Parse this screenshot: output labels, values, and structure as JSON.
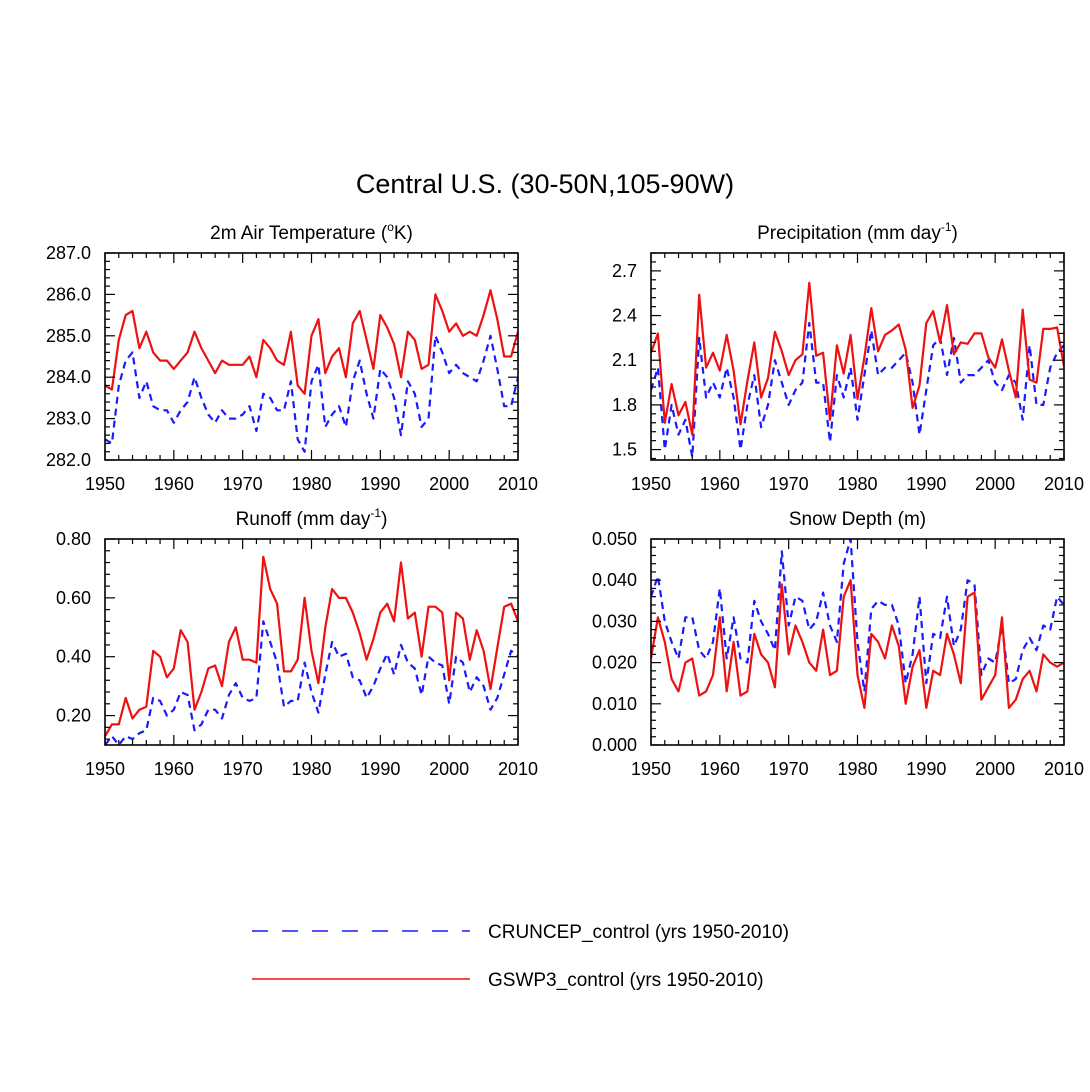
{
  "figure": {
    "title": "Central U.S. (30-50N,105-90W)"
  },
  "legend": {
    "items": [
      {
        "label": "CRUNCEP_control (yrs 1950-2010)",
        "color": "#1a1aff",
        "style": "dashed"
      },
      {
        "label": "GSWP3_control (yrs 1950-2010)",
        "color": "#ee1111",
        "style": "solid"
      }
    ]
  },
  "chart_data": [
    {
      "type": "line",
      "title": "2m Air Temperature",
      "title_unit_prefix": "(",
      "title_unit_super": "o",
      "title_unit_suffix": "K)",
      "xlim": [
        1950,
        2010
      ],
      "ylim": [
        282.0,
        287.0
      ],
      "x_ticks": [
        1950,
        1960,
        1970,
        1980,
        1990,
        2000,
        2010
      ],
      "x_tick_labels": [
        "1950",
        "1960",
        "1970",
        "1980",
        "1990",
        "2000",
        "2010"
      ],
      "y_ticks": [
        282.0,
        283.0,
        284.0,
        285.0,
        286.0,
        287.0
      ],
      "y_tick_labels": [
        "282.0",
        "283.0",
        "284.0",
        "285.0",
        "286.0",
        "287.0"
      ],
      "x_start": 1950,
      "series": [
        {
          "name": "CRUNCEP_control",
          "values": [
            282.5,
            282.4,
            283.8,
            284.4,
            284.6,
            283.5,
            283.9,
            283.3,
            283.2,
            283.2,
            282.9,
            283.2,
            283.4,
            284.0,
            283.5,
            283.1,
            282.9,
            283.2,
            283.0,
            283.0,
            283.1,
            283.3,
            282.7,
            283.6,
            283.5,
            283.2,
            283.2,
            283.9,
            282.5,
            282.2,
            283.9,
            284.3,
            282.8,
            283.1,
            283.3,
            282.8,
            283.9,
            284.4,
            283.6,
            283.0,
            284.2,
            284.0,
            283.5,
            282.6,
            283.9,
            283.6,
            282.8,
            283.0,
            285.0,
            284.6,
            284.1,
            284.3,
            284.1,
            284.0,
            283.9,
            284.4,
            285.0,
            284.2,
            283.3,
            283.3,
            284.0
          ]
        },
        {
          "name": "GSWP3_control",
          "values": [
            283.8,
            283.7,
            284.9,
            285.5,
            285.6,
            284.7,
            285.1,
            284.6,
            284.4,
            284.4,
            284.2,
            284.4,
            284.6,
            285.1,
            284.7,
            284.4,
            284.1,
            284.4,
            284.3,
            284.3,
            284.3,
            284.5,
            284.0,
            284.9,
            284.7,
            284.4,
            284.3,
            285.1,
            283.8,
            283.6,
            285.0,
            285.4,
            284.1,
            284.5,
            284.7,
            284.0,
            285.3,
            285.6,
            284.9,
            284.2,
            285.5,
            285.2,
            284.8,
            284.0,
            285.1,
            284.9,
            284.2,
            284.3,
            286.0,
            285.6,
            285.1,
            285.3,
            285.0,
            285.1,
            285.0,
            285.5,
            286.1,
            285.4,
            284.5,
            284.5,
            285.1
          ]
        }
      ]
    },
    {
      "type": "line",
      "title": "Precipitation",
      "title_unit_prefix": "(mm day",
      "title_unit_super": "-1",
      "title_unit_suffix": ")",
      "xlim": [
        1950,
        2010
      ],
      "ylim": [
        1.43,
        2.82
      ],
      "x_ticks": [
        1950,
        1960,
        1970,
        1980,
        1990,
        2000,
        2010
      ],
      "x_tick_labels": [
        "1950",
        "1960",
        "1970",
        "1980",
        "1990",
        "2000",
        "2010"
      ],
      "y_ticks": [
        1.5,
        1.8,
        2.1,
        2.4,
        2.7
      ],
      "y_tick_labels": [
        "1.5",
        "1.8",
        "2.1",
        "2.4",
        "2.7"
      ],
      "x_start": 1950,
      "series": [
        {
          "name": "CRUNCEP_control",
          "values": [
            1.9,
            2.05,
            1.5,
            1.8,
            1.6,
            1.7,
            1.45,
            2.25,
            1.85,
            1.95,
            1.85,
            2.05,
            1.85,
            1.5,
            1.8,
            2.0,
            1.65,
            1.8,
            2.1,
            1.95,
            1.8,
            1.9,
            1.95,
            2.35,
            1.95,
            1.95,
            1.55,
            2.0,
            1.85,
            2.05,
            1.7,
            2.0,
            2.3,
            2.0,
            2.05,
            2.05,
            2.1,
            2.15,
            1.95,
            1.6,
            1.9,
            2.2,
            2.25,
            2.0,
            2.25,
            1.95,
            2.0,
            2.0,
            2.05,
            2.1,
            1.95,
            1.9,
            2.0,
            1.95,
            1.7,
            2.2,
            1.8,
            1.8,
            2.05,
            2.15,
            2.2
          ]
        },
        {
          "name": "GSWP3_control",
          "values": [
            2.15,
            2.28,
            1.68,
            1.94,
            1.73,
            1.82,
            1.6,
            2.54,
            2.05,
            2.15,
            2.03,
            2.27,
            2.03,
            1.67,
            1.96,
            2.22,
            1.85,
            1.98,
            2.29,
            2.16,
            2.0,
            2.1,
            2.14,
            2.62,
            2.13,
            2.15,
            1.7,
            2.2,
            2.01,
            2.27,
            1.84,
            2.12,
            2.45,
            2.16,
            2.27,
            2.3,
            2.34,
            2.17,
            1.78,
            1.93,
            2.35,
            2.43,
            2.22,
            2.47,
            2.14,
            2.22,
            2.21,
            2.28,
            2.28,
            2.12,
            2.05,
            2.24,
            2.03,
            1.85,
            2.44,
            1.97,
            1.95,
            2.31,
            2.31,
            2.32,
            2.06
          ]
        }
      ]
    },
    {
      "type": "line",
      "title": "Runoff",
      "title_unit_prefix": "(mm day",
      "title_unit_super": "-1",
      "title_unit_suffix": ")",
      "xlim": [
        1950,
        2010
      ],
      "ylim": [
        0.1,
        0.8
      ],
      "x_ticks": [
        1950,
        1960,
        1970,
        1980,
        1990,
        2000,
        2010
      ],
      "x_tick_labels": [
        "1950",
        "1960",
        "1970",
        "1980",
        "1990",
        "2000",
        "2010"
      ],
      "y_ticks": [
        0.2,
        0.4,
        0.6,
        0.8
      ],
      "y_tick_labels": [
        "0.20",
        "0.40",
        "0.60",
        "0.80"
      ],
      "x_start": 1950,
      "series": [
        {
          "name": "CRUNCEP_control",
          "values": [
            0.1,
            0.13,
            0.1,
            0.13,
            0.12,
            0.14,
            0.15,
            0.26,
            0.25,
            0.2,
            0.22,
            0.28,
            0.27,
            0.15,
            0.17,
            0.22,
            0.22,
            0.19,
            0.27,
            0.31,
            0.26,
            0.25,
            0.26,
            0.52,
            0.45,
            0.38,
            0.23,
            0.25,
            0.25,
            0.38,
            0.28,
            0.21,
            0.34,
            0.45,
            0.4,
            0.41,
            0.33,
            0.32,
            0.26,
            0.3,
            0.36,
            0.41,
            0.34,
            0.44,
            0.38,
            0.36,
            0.27,
            0.4,
            0.38,
            0.37,
            0.24,
            0.4,
            0.38,
            0.28,
            0.33,
            0.3,
            0.22,
            0.26,
            0.34,
            0.42,
            0.4
          ]
        },
        {
          "name": "GSWP3_control",
          "values": [
            0.13,
            0.17,
            0.17,
            0.26,
            0.19,
            0.22,
            0.23,
            0.42,
            0.4,
            0.33,
            0.36,
            0.49,
            0.45,
            0.22,
            0.28,
            0.36,
            0.37,
            0.3,
            0.45,
            0.5,
            0.39,
            0.39,
            0.38,
            0.74,
            0.63,
            0.58,
            0.35,
            0.35,
            0.39,
            0.6,
            0.42,
            0.31,
            0.5,
            0.63,
            0.6,
            0.6,
            0.55,
            0.48,
            0.39,
            0.46,
            0.55,
            0.58,
            0.52,
            0.72,
            0.53,
            0.55,
            0.4,
            0.57,
            0.57,
            0.55,
            0.32,
            0.55,
            0.53,
            0.39,
            0.49,
            0.42,
            0.29,
            0.43,
            0.57,
            0.58,
            0.52
          ]
        }
      ]
    },
    {
      "type": "line",
      "title": "Snow Depth (m)",
      "title_unit_prefix": "",
      "title_unit_super": "",
      "title_unit_suffix": "",
      "xlim": [
        1950,
        2010
      ],
      "ylim": [
        0.0,
        0.05
      ],
      "x_ticks": [
        1950,
        1960,
        1970,
        1980,
        1990,
        2000,
        2010
      ],
      "x_tick_labels": [
        "1950",
        "1960",
        "1970",
        "1980",
        "1990",
        "2000",
        "2010"
      ],
      "y_ticks": [
        0.0,
        0.01,
        0.02,
        0.03,
        0.04,
        0.05
      ],
      "y_tick_labels": [
        "0.000",
        "0.010",
        "0.020",
        "0.030",
        "0.040",
        "0.050"
      ],
      "x_start": 1950,
      "series": [
        {
          "name": "CRUNCEP_control",
          "values": [
            0.036,
            0.041,
            0.03,
            0.025,
            0.021,
            0.031,
            0.031,
            0.023,
            0.021,
            0.025,
            0.038,
            0.021,
            0.031,
            0.021,
            0.02,
            0.035,
            0.03,
            0.027,
            0.023,
            0.047,
            0.029,
            0.036,
            0.035,
            0.028,
            0.03,
            0.037,
            0.029,
            0.025,
            0.044,
            0.05,
            0.025,
            0.013,
            0.033,
            0.035,
            0.034,
            0.034,
            0.029,
            0.015,
            0.022,
            0.036,
            0.015,
            0.027,
            0.026,
            0.036,
            0.024,
            0.028,
            0.04,
            0.039,
            0.017,
            0.021,
            0.02,
            0.029,
            0.015,
            0.016,
            0.023,
            0.026,
            0.023,
            0.029,
            0.028,
            0.036,
            0.034
          ]
        },
        {
          "name": "GSWP3_control",
          "values": [
            0.021,
            0.031,
            0.025,
            0.016,
            0.013,
            0.02,
            0.021,
            0.012,
            0.013,
            0.017,
            0.031,
            0.013,
            0.025,
            0.012,
            0.013,
            0.027,
            0.022,
            0.02,
            0.014,
            0.039,
            0.022,
            0.029,
            0.025,
            0.02,
            0.018,
            0.028,
            0.017,
            0.018,
            0.036,
            0.04,
            0.017,
            0.009,
            0.027,
            0.025,
            0.021,
            0.029,
            0.024,
            0.01,
            0.019,
            0.023,
            0.009,
            0.018,
            0.017,
            0.027,
            0.022,
            0.015,
            0.036,
            0.037,
            0.011,
            0.014,
            0.017,
            0.031,
            0.009,
            0.011,
            0.016,
            0.018,
            0.013,
            0.022,
            0.02,
            0.019,
            0.02
          ]
        }
      ]
    }
  ]
}
